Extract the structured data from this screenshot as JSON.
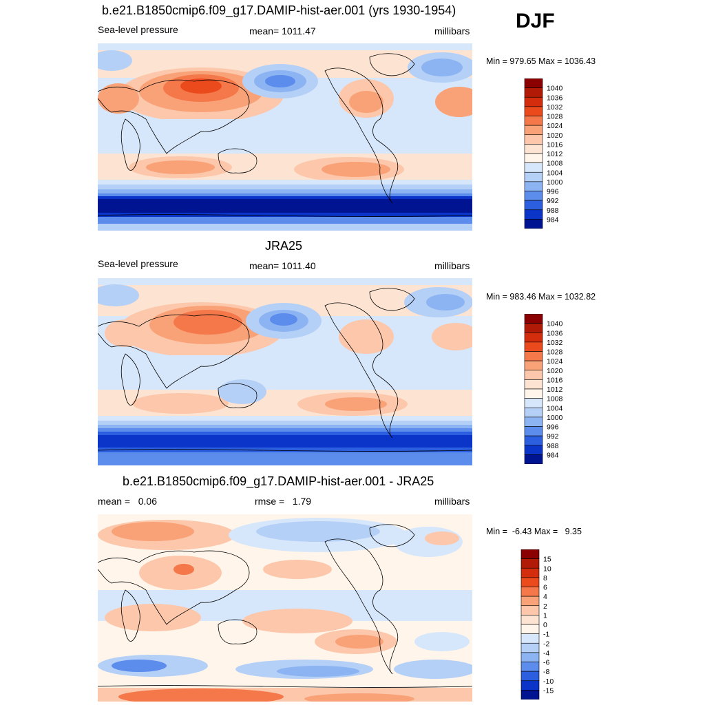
{
  "season": "DJF",
  "chart_data": [
    {
      "type": "heatmap",
      "title": "b.e21.B1850cmip6.f09_g17.DAMIP-hist-aer.001 (yrs 1930-1954)",
      "left_label": "Sea-level pressure",
      "center_label": "mean= 1011.47",
      "right_label": "millibars",
      "minmax": "Min = 979.65 Max = 1036.43",
      "colorbar": {
        "levels": [
          "1040",
          "1036",
          "1032",
          "1028",
          "1024",
          "1020",
          "1016",
          "1012",
          "1008",
          "1004",
          "1000",
          "996",
          "992",
          "988",
          "984"
        ],
        "colors": [
          "#8b0000",
          "#b11a06",
          "#d42d0d",
          "#eb4a1c",
          "#f4784a",
          "#f9a278",
          "#fcc7aa",
          "#fde3d1",
          "#fff5ea",
          "#d7e7fb",
          "#b5d0f7",
          "#8db4f2",
          "#5c8cec",
          "#2c5fe0",
          "#0b34c8",
          "#001390"
        ]
      }
    },
    {
      "type": "heatmap",
      "title": "JRA25",
      "left_label": "Sea-level pressure",
      "center_label": "mean= 1011.40",
      "right_label": "millibars",
      "minmax": "Min = 983.46 Max = 1032.82",
      "colorbar": {
        "levels": [
          "1040",
          "1036",
          "1032",
          "1028",
          "1024",
          "1020",
          "1016",
          "1012",
          "1008",
          "1004",
          "1000",
          "996",
          "992",
          "988",
          "984"
        ],
        "colors": [
          "#8b0000",
          "#b11a06",
          "#d42d0d",
          "#eb4a1c",
          "#f4784a",
          "#f9a278",
          "#fcc7aa",
          "#fde3d1",
          "#fff5ea",
          "#d7e7fb",
          "#b5d0f7",
          "#8db4f2",
          "#5c8cec",
          "#2c5fe0",
          "#0b34c8",
          "#001390"
        ]
      }
    },
    {
      "type": "heatmap",
      "title": "b.e21.B1850cmip6.f09_g17.DAMIP-hist-aer.001 - JRA25",
      "left_label": "mean =   0.06",
      "center_label": "rmse =   1.79",
      "right_label": "millibars",
      "minmax": "Min =  -6.43 Max =   9.35",
      "colorbar": {
        "levels": [
          "15",
          "10",
          "8",
          "6",
          "4",
          "2",
          "1",
          "0",
          "-1",
          "-2",
          "-4",
          "-6",
          "-8",
          "-10",
          "-15"
        ],
        "colors": [
          "#8b0000",
          "#b11a06",
          "#d42d0d",
          "#eb4a1c",
          "#f4784a",
          "#f9a278",
          "#fcc7aa",
          "#fde3d1",
          "#fff5ea",
          "#d7e7fb",
          "#b5d0f7",
          "#8db4f2",
          "#5c8cec",
          "#2c5fe0",
          "#0b34c8",
          "#001390"
        ]
      }
    }
  ]
}
